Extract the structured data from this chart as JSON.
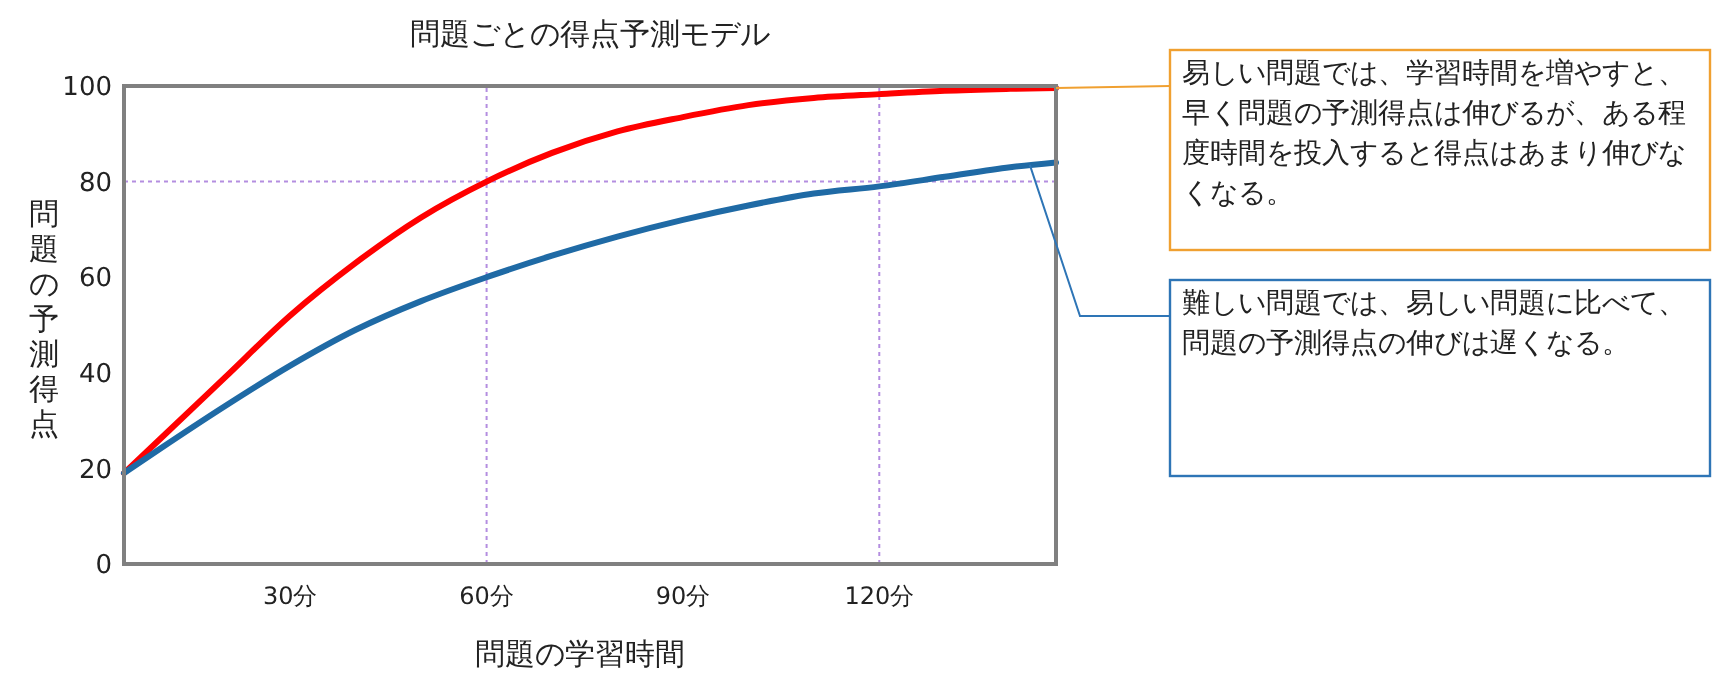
{
  "chart_data": {
    "type": "line",
    "title": "問題ごとの得点予測モデル",
    "xlabel": "問題の学習時間",
    "ylabel": "問題の予測得点",
    "x": [
      4.6,
      10,
      20,
      30,
      40,
      50,
      60,
      70,
      80,
      90,
      100,
      110,
      120,
      130,
      140,
      147
    ],
    "series": [
      {
        "color": "#ff0000",
        "values": [
          19,
          26,
          39,
          52,
          63,
          72.5,
          80,
          86,
          90.5,
          93.5,
          96,
          97.5,
          98.3,
          99,
          99.4,
          99.6
        ]
      },
      {
        "color": "#1f6aa5",
        "values": [
          19,
          24,
          33,
          41.5,
          49,
          55,
          60,
          64.5,
          68.5,
          72,
          75,
          77.5,
          79,
          81,
          83,
          84
        ]
      }
    ],
    "xlim": [
      4.6,
      147
    ],
    "ylim": [
      0,
      100
    ],
    "xticks": [
      {
        "value": 30,
        "label": "30分"
      },
      {
        "value": 60,
        "label": "60分"
      },
      {
        "value": 90,
        "label": "90分"
      },
      {
        "value": 120,
        "label": "120分"
      }
    ],
    "yticks": [
      0,
      20,
      40,
      60,
      80,
      100
    ],
    "ref_lines": [
      {
        "axis": "y",
        "value": 80,
        "color": "#b48ee0",
        "line_style": "dotted"
      },
      {
        "axis": "x",
        "value": 60,
        "color": "#b48ee0",
        "line_style": "dotted"
      },
      {
        "axis": "x",
        "value": 120,
        "color": "#b48ee0",
        "line_style": "dotted"
      }
    ],
    "annotations": [
      {
        "text": "易しい問題では、学習時間を増やすと、早く問題の予測得点は伸びるが、ある程度時間を投入すると得点はあまり伸びなくなる。",
        "x": 147,
        "y": 99.6
      },
      {
        "text": "難しい問題では、易しい問題に比べて、問題の予測得点の伸びは遅くなる。",
        "x": 143,
        "y": 83.5
      }
    ],
    "grid": false,
    "marker": "none",
    "line_style": "solid"
  }
}
